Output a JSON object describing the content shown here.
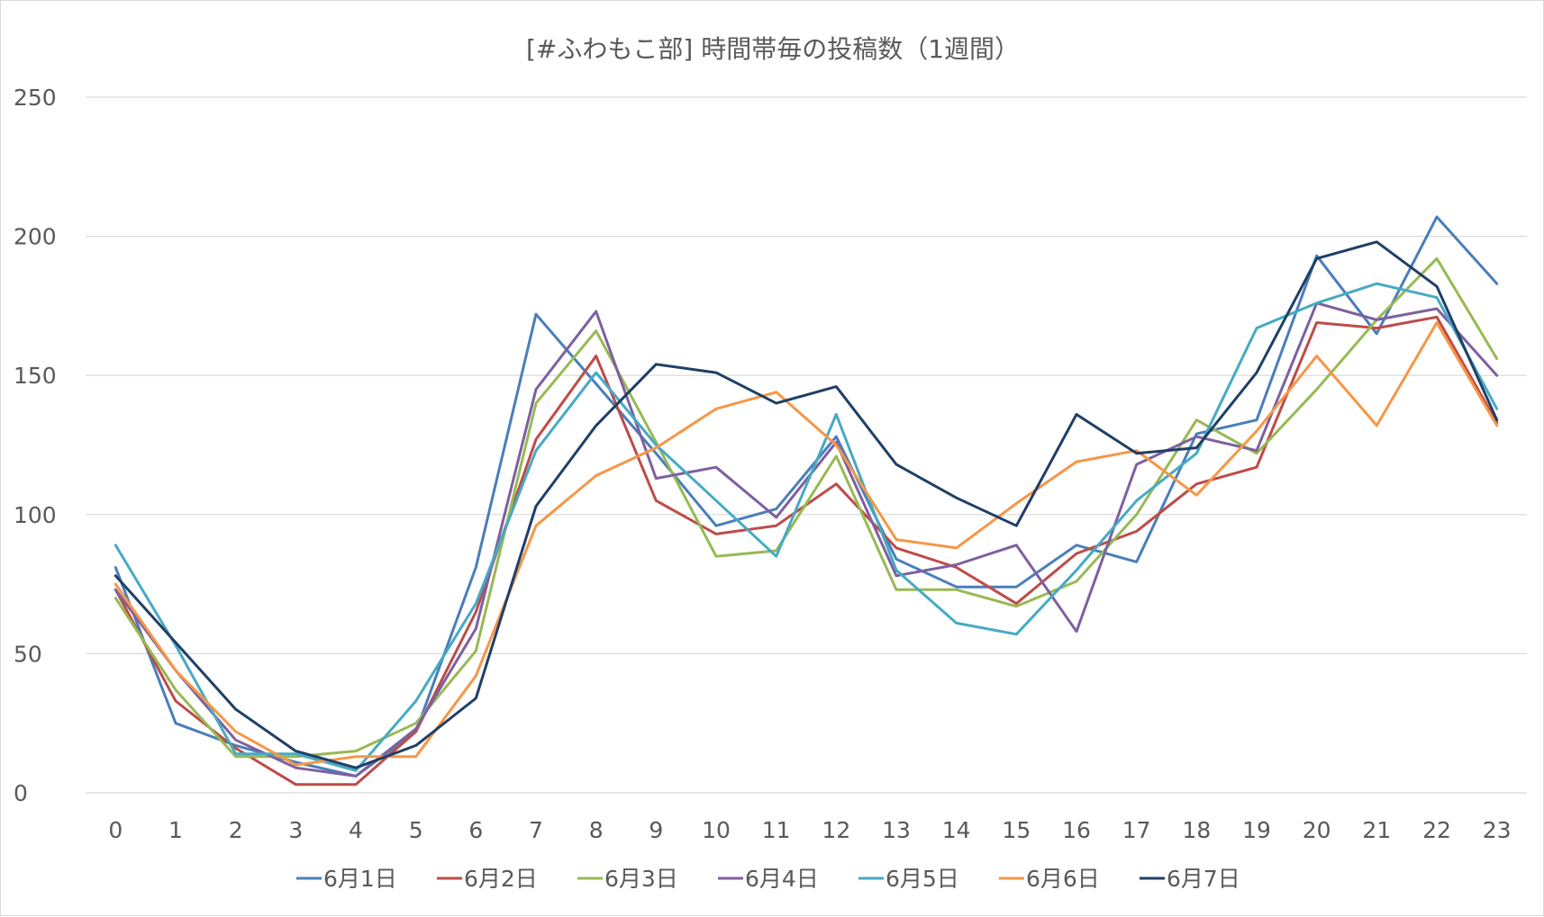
{
  "chart_data": {
    "type": "line",
    "title": "[#ふわもこ部] 時間帯毎の投稿数（1週間）",
    "xlabel": "",
    "ylabel": "",
    "categories": [
      "0",
      "1",
      "2",
      "3",
      "4",
      "5",
      "6",
      "7",
      "8",
      "9",
      "10",
      "11",
      "12",
      "13",
      "14",
      "15",
      "16",
      "17",
      "18",
      "19",
      "20",
      "21",
      "22",
      "23"
    ],
    "ylim": [
      0,
      250
    ],
    "yticks": [
      0,
      50,
      100,
      150,
      200,
      250
    ],
    "grid": true,
    "legend_position": "bottom",
    "series": [
      {
        "name": "6月1日",
        "color": "#4a7ebb",
        "values": [
          81,
          25,
          17,
          11,
          6,
          22,
          81,
          172,
          147,
          122,
          96,
          102,
          128,
          84,
          74,
          74,
          89,
          83,
          129,
          134,
          193,
          165,
          207,
          183
        ]
      },
      {
        "name": "6月2日",
        "color": "#be4b48",
        "values": [
          73,
          33,
          16,
          3,
          3,
          22,
          65,
          127,
          157,
          105,
          93,
          96,
          111,
          88,
          81,
          68,
          86,
          94,
          111,
          117,
          169,
          167,
          171,
          133
        ]
      },
      {
        "name": "6月3日",
        "color": "#98b954",
        "values": [
          70,
          37,
          13,
          13,
          15,
          25,
          51,
          140,
          166,
          126,
          85,
          87,
          121,
          73,
          73,
          67,
          76,
          100,
          134,
          122,
          145,
          170,
          192,
          156
        ]
      },
      {
        "name": "6月4日",
        "color": "#7d60a0",
        "values": [
          73,
          44,
          19,
          9,
          6,
          23,
          59,
          145,
          173,
          113,
          117,
          99,
          126,
          78,
          82,
          89,
          58,
          118,
          128,
          123,
          176,
          170,
          174,
          150
        ]
      },
      {
        "name": "6月5日",
        "color": "#46aac4",
        "values": [
          89,
          53,
          14,
          14,
          8,
          33,
          68,
          123,
          151,
          125,
          105,
          85,
          136,
          80,
          61,
          57,
          80,
          105,
          122,
          167,
          176,
          183,
          178,
          138
        ]
      },
      {
        "name": "6月6日",
        "color": "#f79646",
        "values": [
          75,
          44,
          22,
          10,
          13,
          13,
          42,
          96,
          114,
          124,
          138,
          144,
          125,
          91,
          88,
          104,
          119,
          123,
          107,
          130,
          157,
          132,
          169,
          132
        ]
      },
      {
        "name": "6月7日",
        "color": "#1f3f66",
        "values": [
          78,
          54,
          30,
          15,
          9,
          17,
          34,
          103,
          132,
          154,
          151,
          140,
          146,
          118,
          106,
          96,
          136,
          122,
          124,
          151,
          192,
          198,
          182,
          134
        ]
      }
    ]
  }
}
